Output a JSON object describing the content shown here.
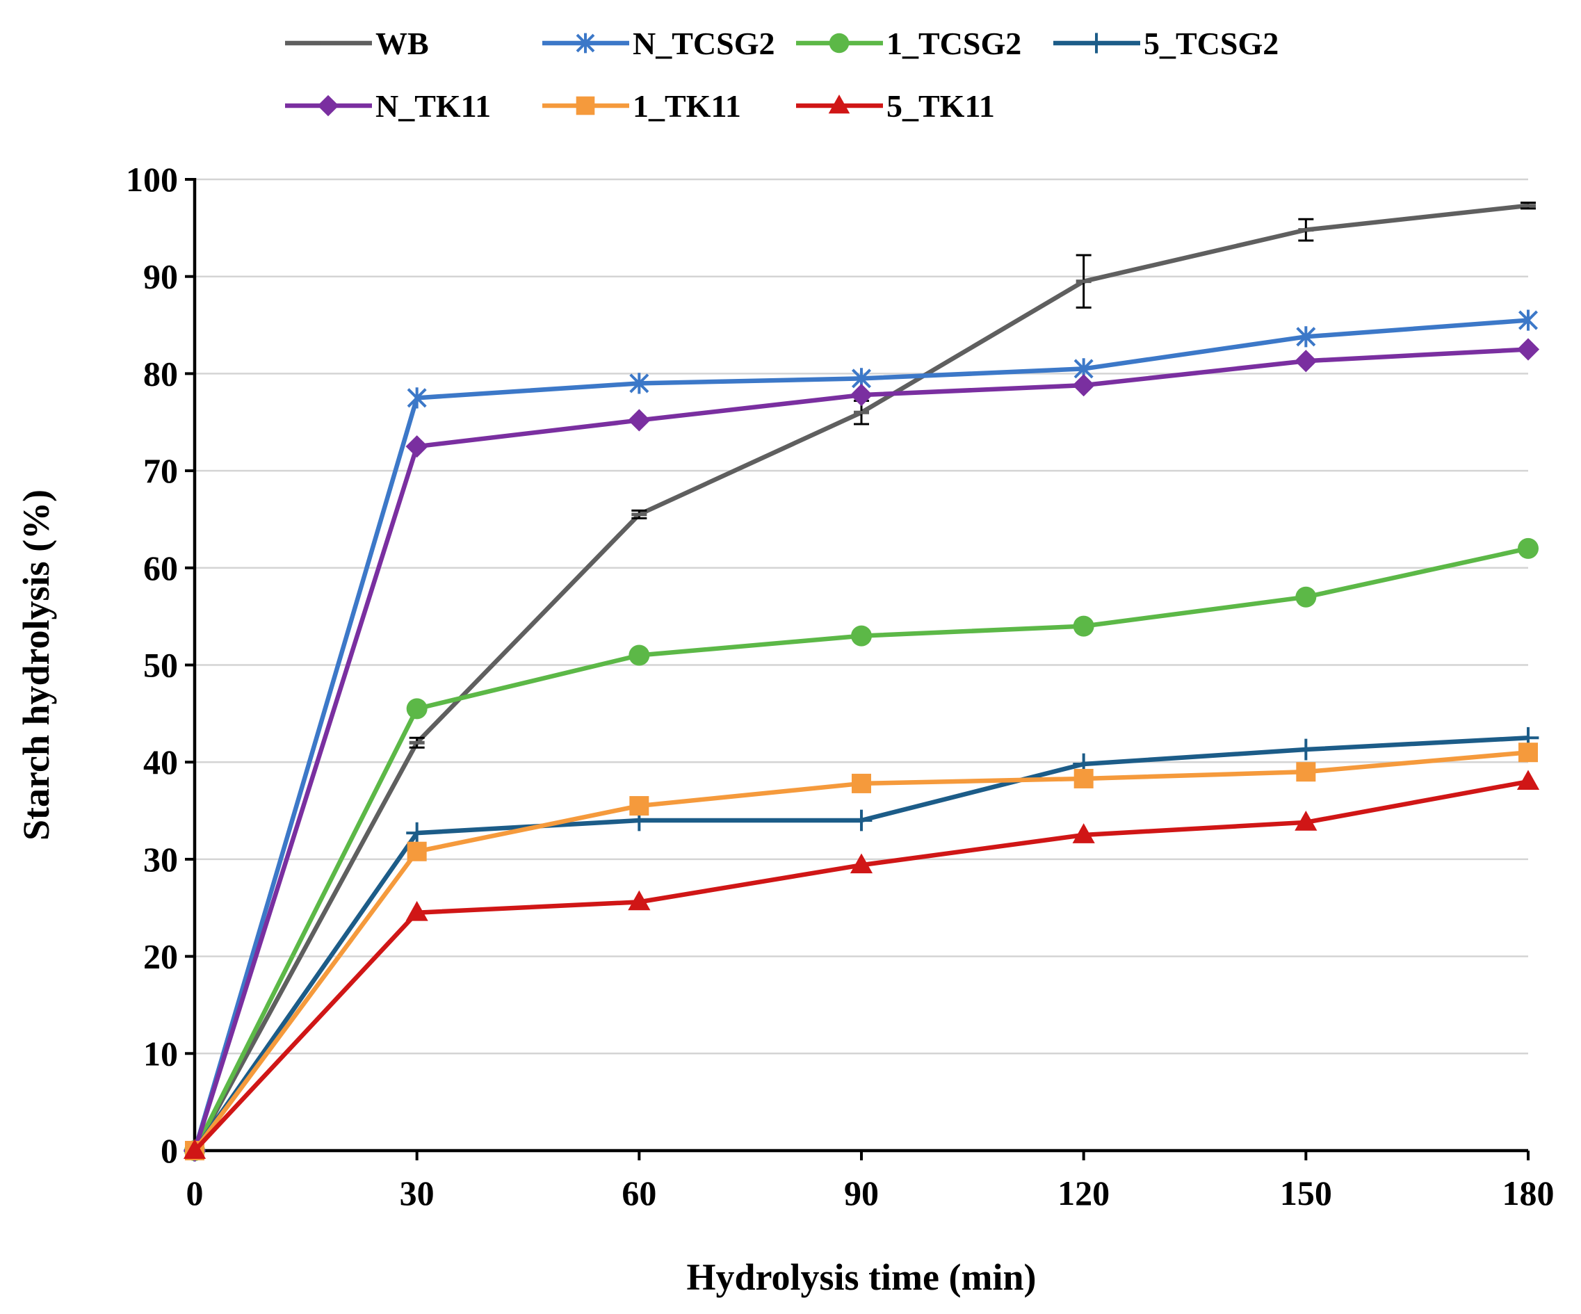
{
  "chart_data": {
    "type": "line",
    "title": "",
    "xlabel": "Hydrolysis time (min)",
    "ylabel": "Starch hydrolysis (%)",
    "x": [
      0,
      30,
      60,
      90,
      120,
      150,
      180
    ],
    "xlim": [
      0,
      180
    ],
    "ylim": [
      0,
      100
    ],
    "xticks": [
      "0",
      "30",
      "60",
      "90",
      "120",
      "150",
      "180"
    ],
    "yticks": [
      "0",
      "10",
      "20",
      "30",
      "40",
      "50",
      "60",
      "70",
      "80",
      "90",
      "100"
    ],
    "grid": "horizontal",
    "legend_position": "top",
    "series": [
      {
        "name": "WB",
        "color": "#5f5f5f",
        "marker": "dash",
        "values": [
          0,
          42.0,
          65.5,
          76.0,
          89.5,
          94.8,
          97.3
        ],
        "errors": [
          0,
          0.5,
          0.4,
          1.2,
          2.7,
          1.1,
          0.3
        ]
      },
      {
        "name": "N_TCSG2",
        "color": "#3c78c8",
        "marker": "asterisk",
        "values": [
          0,
          77.5,
          79.0,
          79.5,
          80.5,
          83.8,
          85.5
        ]
      },
      {
        "name": "1_TCSG2",
        "color": "#5cb847",
        "marker": "circle",
        "values": [
          0,
          45.5,
          51.0,
          53.0,
          54.0,
          57.0,
          62.0
        ]
      },
      {
        "name": "5_TCSG2",
        "color": "#1c5c88",
        "marker": "plus",
        "values": [
          0,
          32.7,
          34.0,
          34.0,
          39.8,
          41.3,
          42.5
        ]
      },
      {
        "name": "N_TK11",
        "color": "#7a2fa0",
        "marker": "diamond",
        "values": [
          0,
          72.5,
          75.2,
          77.8,
          78.8,
          81.3,
          82.5
        ]
      },
      {
        "name": "1_TK11",
        "color": "#f59a3c",
        "marker": "square",
        "values": [
          0,
          30.8,
          35.5,
          37.8,
          38.3,
          39.0,
          41.0
        ]
      },
      {
        "name": "5_TK11",
        "color": "#d01616",
        "marker": "triangle",
        "values": [
          0,
          24.5,
          25.6,
          29.4,
          32.5,
          33.8,
          38.0
        ]
      }
    ]
  }
}
